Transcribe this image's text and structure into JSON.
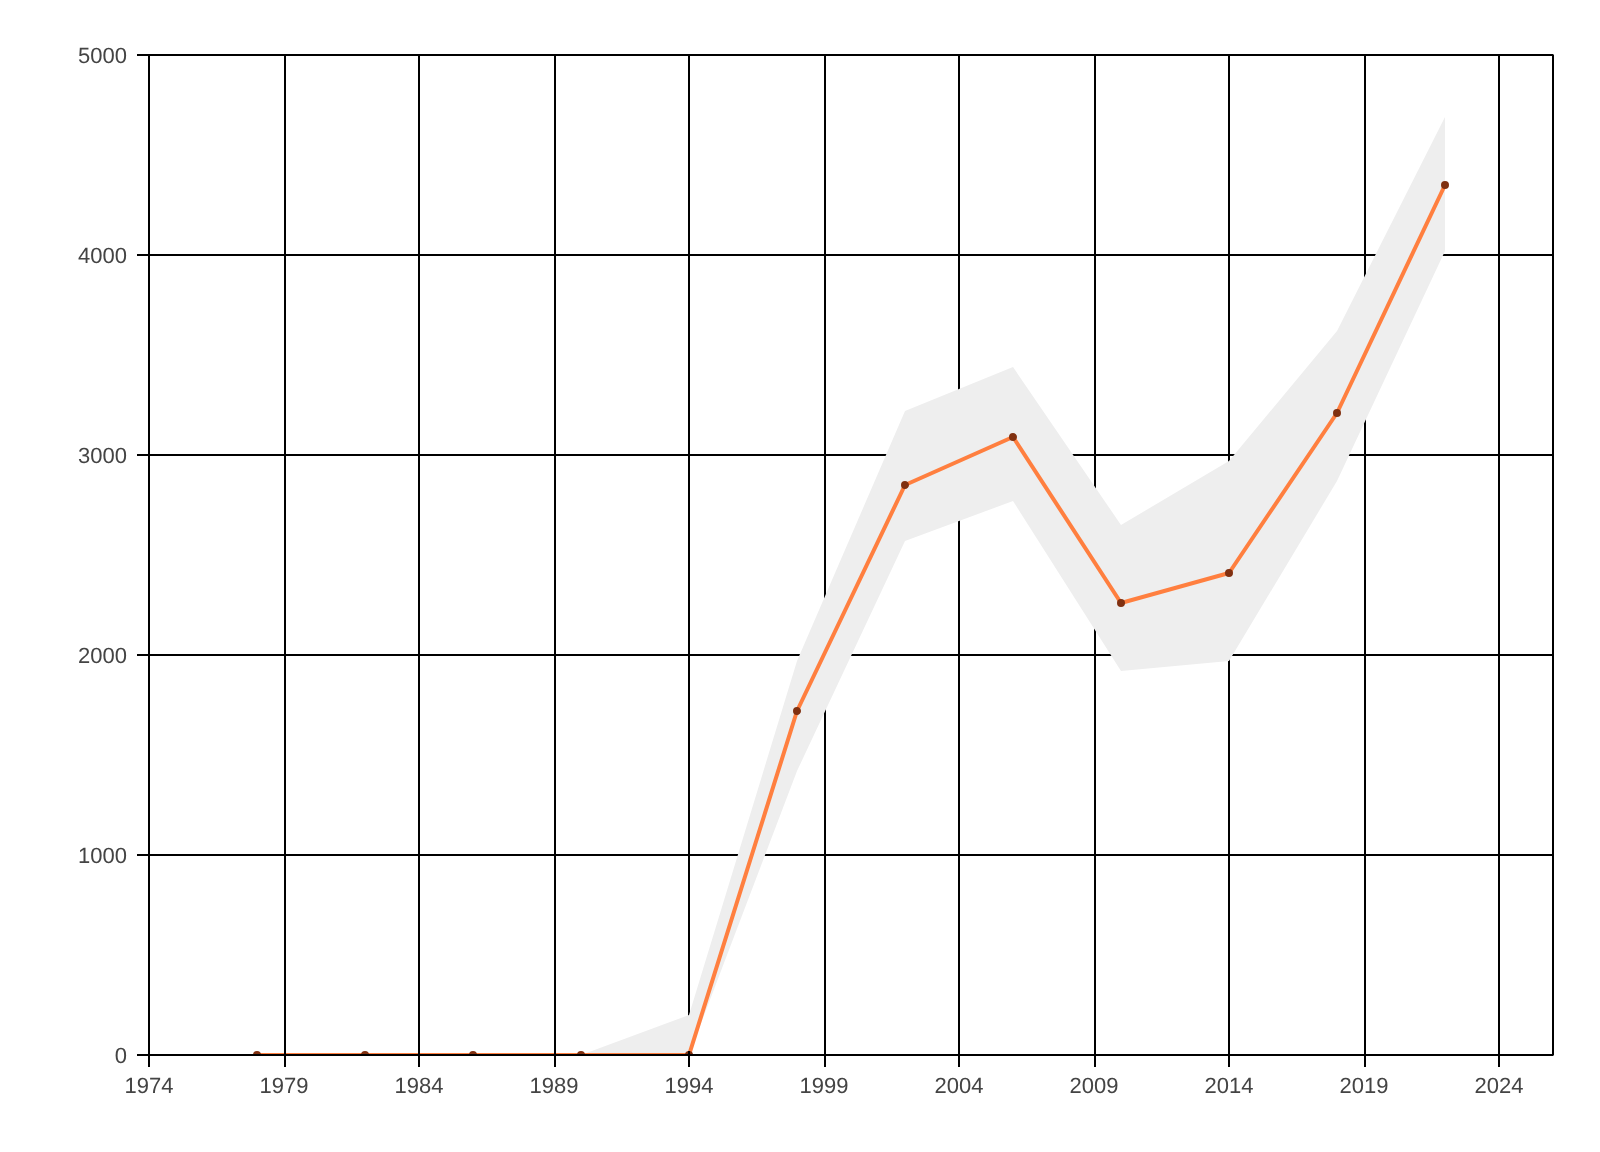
{
  "chart_data": {
    "type": "line",
    "x": [
      1978,
      1982,
      1986,
      1990,
      1994,
      1998,
      2002,
      2006,
      2010,
      2014,
      2018,
      2022
    ],
    "series": [
      {
        "color": "#ff7f3f",
        "values": [
          0,
          0,
          0,
          0,
          0,
          1720,
          2850,
          3090,
          2260,
          2410,
          3210,
          4350
        ],
        "lower": [
          0,
          0,
          0,
          0,
          0,
          1420,
          2570,
          2770,
          1920,
          1970,
          2870,
          4020
        ],
        "upper": [
          0,
          0,
          0,
          0,
          200,
          1970,
          3220,
          3440,
          2650,
          2970,
          3620,
          4690
        ]
      }
    ],
    "xlim": [
      1974,
      2026
    ],
    "ylim": [
      0,
      5000
    ],
    "xticks": [
      1974,
      1979,
      1984,
      1989,
      1994,
      1999,
      2004,
      2009,
      2014,
      2019,
      2024
    ],
    "yticks": [
      0,
      1000,
      2000,
      3000,
      4000,
      5000
    ],
    "grid": true,
    "marker": "circle",
    "line_style": "solid"
  }
}
